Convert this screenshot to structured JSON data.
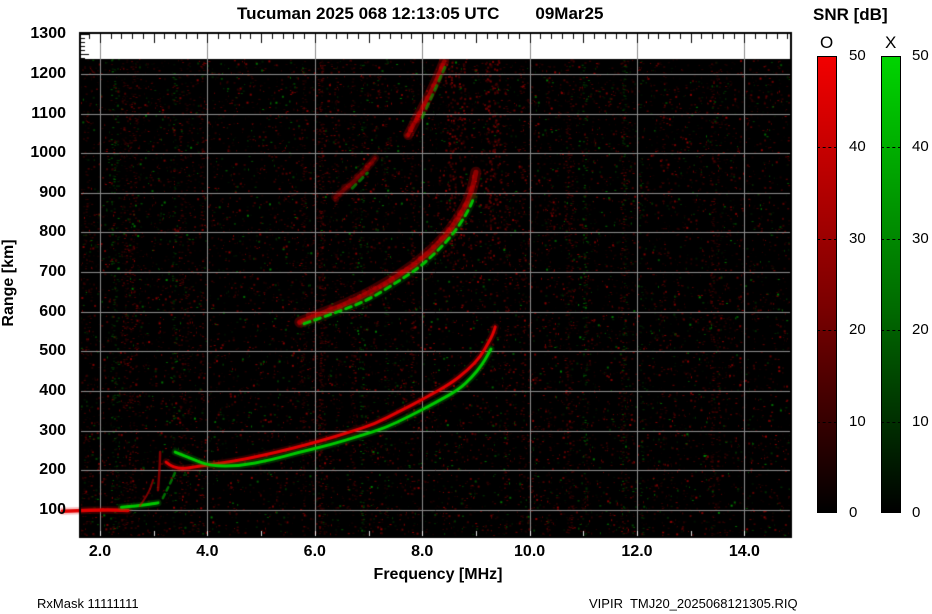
{
  "title": {
    "main": "Tucuman 2025 068 12:13:05 UTC",
    "date": "09Mar25"
  },
  "footer": {
    "left": "RxMask 11111111",
    "right": "VIPIR  TMJ20_2025068121305.RIQ"
  },
  "colorbar": {
    "title": "SNR [dB]",
    "o_label": "O",
    "x_label": "X",
    "tick_values": [
      50,
      40,
      30,
      20,
      10,
      0
    ],
    "tick_labels": [
      "50",
      "40",
      "30",
      "20",
      "10",
      "0"
    ],
    "value_range": [
      0,
      50
    ],
    "o_top_color": "#f20000",
    "x_top_color": "#00d400",
    "bottom_color": "#000000"
  },
  "chart_data": {
    "type": "heatmap",
    "title": "Tucuman 2025 068 12:13:05 UTC 09Mar25",
    "xlabel": "Frequency [MHz]",
    "ylabel": "Range [km]",
    "xlim": [
      1.6,
      14.9
    ],
    "ylim": [
      35,
      1310
    ],
    "x_ticks": [
      2,
      4,
      6,
      8,
      10,
      12,
      14
    ],
    "x_tick_labels": [
      "2.0",
      "4.0",
      "6.0",
      "8.0",
      "10.0",
      "12.0",
      "14.0"
    ],
    "y_ticks": [
      100,
      200,
      300,
      400,
      500,
      600,
      700,
      800,
      900,
      1000,
      1100,
      1200,
      1300
    ],
    "grid": true,
    "grid_color": "#8c8c8c",
    "plot_background": "#000000",
    "no_data_band_km": [
      1245,
      1310
    ],
    "legend": "SNR [dB] 0-50, O-mode red, X-mode green",
    "mode_colors": {
      "O": "#e00000",
      "X": "#00c800"
    },
    "traces": [
      {
        "name": "E-layer O",
        "mode": "O",
        "style": "solid",
        "width": 3.5,
        "points": [
          [
            1.3,
            97
          ],
          [
            1.6,
            99
          ],
          [
            2.0,
            100
          ],
          [
            2.3,
            100
          ],
          [
            2.52,
            99
          ]
        ]
      },
      {
        "name": "E-layer X",
        "mode": "X",
        "style": "solid",
        "width": 3,
        "points": [
          [
            2.4,
            107
          ],
          [
            2.7,
            110
          ],
          [
            3.0,
            116
          ],
          [
            3.08,
            118
          ]
        ]
      },
      {
        "name": "E-cusp wisp O",
        "mode": "O",
        "style": "faint",
        "width": 2,
        "points": [
          [
            2.74,
            110
          ],
          [
            2.9,
            140
          ],
          [
            2.99,
            176
          ]
        ]
      },
      {
        "name": "E-cusp spike O",
        "mode": "O",
        "style": "faint",
        "width": 2.5,
        "points": [
          [
            3.08,
            150
          ],
          [
            3.11,
            200
          ],
          [
            3.12,
            246
          ]
        ]
      },
      {
        "name": "E-cusp wisp X",
        "mode": "X",
        "style": "faint-dash",
        "width": 2.5,
        "points": [
          [
            3.17,
            130
          ],
          [
            3.3,
            165
          ],
          [
            3.42,
            201
          ]
        ]
      },
      {
        "name": "F 1-hop O",
        "mode": "O",
        "style": "solid",
        "width": 3,
        "points": [
          [
            3.23,
            221
          ],
          [
            3.4,
            201
          ],
          [
            3.86,
            211
          ],
          [
            4.42,
            221
          ],
          [
            4.98,
            236
          ],
          [
            5.54,
            254
          ],
          [
            6.1,
            274
          ],
          [
            6.66,
            297
          ],
          [
            7.12,
            317
          ],
          [
            7.59,
            350
          ],
          [
            8.05,
            382
          ],
          [
            8.52,
            418
          ],
          [
            8.85,
            453
          ],
          [
            9.08,
            486
          ],
          [
            9.22,
            519
          ],
          [
            9.32,
            544
          ],
          [
            9.36,
            562
          ]
        ]
      },
      {
        "name": "F 1-hop X",
        "mode": "X",
        "style": "solid",
        "width": 3,
        "points": [
          [
            3.4,
            246
          ],
          [
            3.68,
            231
          ],
          [
            4.05,
            211
          ],
          [
            4.61,
            211
          ],
          [
            5.17,
            226
          ],
          [
            5.72,
            246
          ],
          [
            6.28,
            264
          ],
          [
            6.84,
            287
          ],
          [
            7.31,
            307
          ],
          [
            7.77,
            337
          ],
          [
            8.24,
            370
          ],
          [
            8.67,
            403
          ],
          [
            8.93,
            435
          ],
          [
            9.11,
            466
          ],
          [
            9.22,
            491
          ],
          [
            9.28,
            506
          ]
        ]
      },
      {
        "name": "F 2-hop O",
        "mode": "O",
        "style": "diffuse",
        "width": 5,
        "points": [
          [
            5.72,
            574
          ],
          [
            6.28,
            604
          ],
          [
            6.84,
            635
          ],
          [
            7.4,
            678
          ],
          [
            7.87,
            720
          ],
          [
            8.24,
            763
          ],
          [
            8.55,
            811
          ],
          [
            8.8,
            864
          ],
          [
            8.93,
            907
          ],
          [
            9.0,
            952
          ]
        ]
      },
      {
        "name": "F 2-hop X",
        "mode": "X",
        "style": "dash",
        "width": 3,
        "points": [
          [
            5.8,
            570
          ],
          [
            6.4,
            598
          ],
          [
            7.0,
            630
          ],
          [
            7.5,
            672
          ],
          [
            7.95,
            712
          ],
          [
            8.3,
            755
          ],
          [
            8.6,
            800
          ],
          [
            8.85,
            852
          ],
          [
            8.97,
            890
          ]
        ]
      },
      {
        "name": "F 3-hop O a",
        "mode": "O",
        "style": "diffuse-faint",
        "width": 4,
        "points": [
          [
            6.38,
            889
          ],
          [
            6.66,
            920
          ],
          [
            6.94,
            957
          ],
          [
            7.12,
            988
          ]
        ]
      },
      {
        "name": "F 3-hop X a",
        "mode": "X",
        "style": "dash-faint",
        "width": 3,
        "points": [
          [
            6.7,
            912
          ],
          [
            6.98,
            950
          ]
        ]
      },
      {
        "name": "F 3-hop O b",
        "mode": "O",
        "style": "diffuse",
        "width": 4,
        "points": [
          [
            7.74,
            1046
          ],
          [
            7.96,
            1104
          ],
          [
            8.14,
            1149
          ],
          [
            8.29,
            1194
          ],
          [
            8.41,
            1232
          ]
        ]
      },
      {
        "name": "F 3-hop X b",
        "mode": "X",
        "style": "dash-faint",
        "width": 3,
        "points": [
          [
            8.0,
            1090
          ],
          [
            8.17,
            1140
          ],
          [
            8.32,
            1185
          ],
          [
            8.45,
            1225
          ]
        ]
      }
    ]
  }
}
